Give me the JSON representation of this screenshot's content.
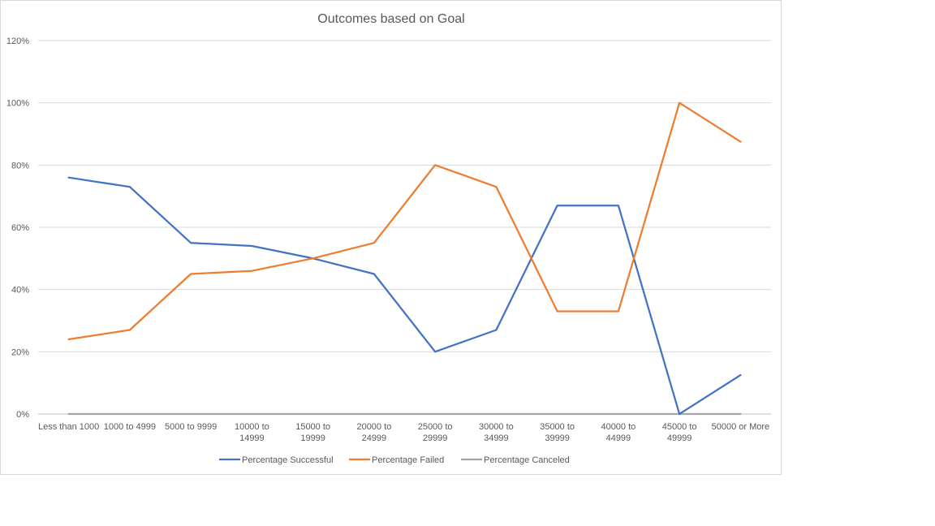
{
  "chart_data": {
    "type": "line",
    "title": "Outcomes based on Goal",
    "xlabel": "",
    "ylabel": "",
    "ylim": [
      0,
      1.2
    ],
    "yticks": [
      0,
      0.2,
      0.4,
      0.6,
      0.8,
      1.0,
      1.2
    ],
    "ytick_labels": [
      "0%",
      "20%",
      "40%",
      "60%",
      "80%",
      "100%",
      "120%"
    ],
    "grid": true,
    "legend_position": "bottom",
    "categories": [
      [
        "Less than 1000"
      ],
      [
        "1000 to 4999"
      ],
      [
        "5000 to 9999"
      ],
      [
        "10000 to",
        "14999"
      ],
      [
        "15000 to",
        "19999"
      ],
      [
        "20000 to",
        "24999"
      ],
      [
        "25000 to",
        "29999"
      ],
      [
        "30000 to",
        "34999"
      ],
      [
        "35000 to",
        "39999"
      ],
      [
        "40000 to",
        "44999"
      ],
      [
        "45000 to",
        "49999"
      ],
      [
        "50000 or More"
      ]
    ],
    "series": [
      {
        "name": "Percentage Successful",
        "color": "#4472c4",
        "values": [
          0.76,
          0.73,
          0.55,
          0.54,
          0.5,
          0.45,
          0.2,
          0.27,
          0.67,
          0.67,
          0.0,
          0.125
        ]
      },
      {
        "name": "Percentage Failed",
        "color": "#ed7d31",
        "values": [
          0.24,
          0.27,
          0.45,
          0.46,
          0.5,
          0.55,
          0.8,
          0.73,
          0.33,
          0.33,
          1.0,
          0.875
        ]
      },
      {
        "name": "Percentage Canceled",
        "color": "#a5a5a5",
        "values": [
          0,
          0,
          0,
          0,
          0,
          0,
          0,
          0,
          0,
          0,
          0,
          0
        ]
      }
    ]
  }
}
